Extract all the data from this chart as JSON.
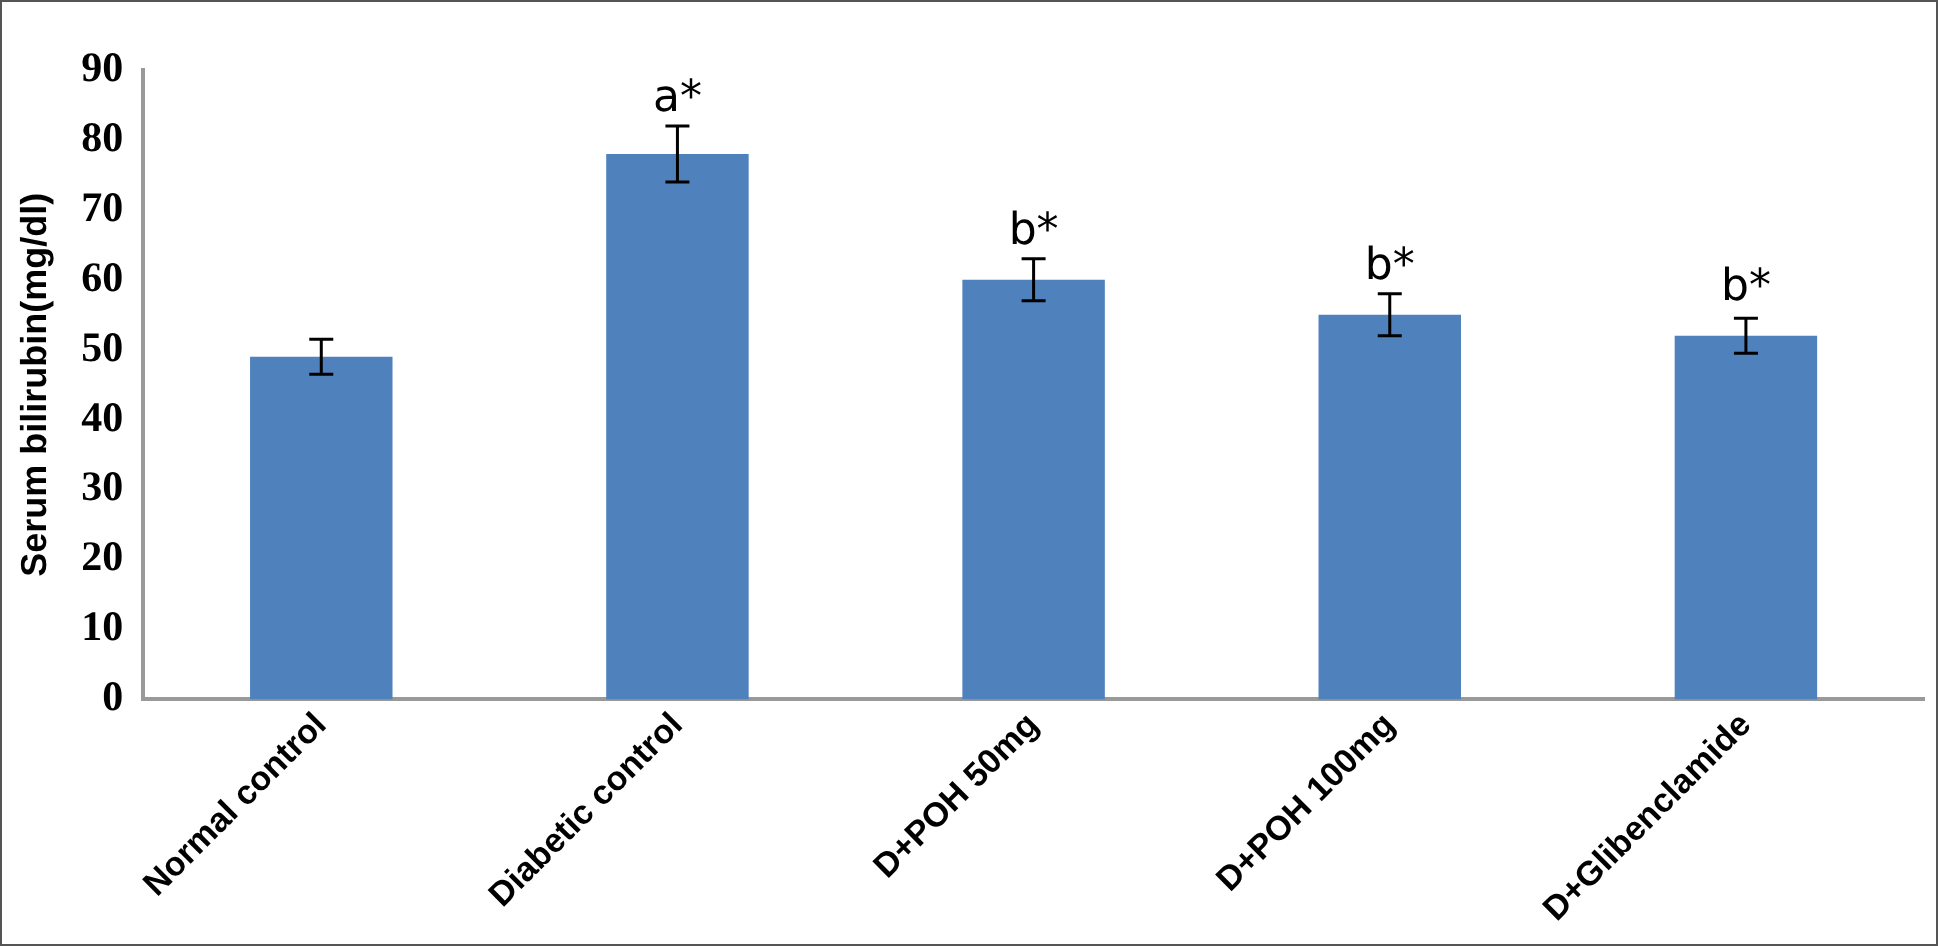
{
  "chart_data": {
    "type": "bar",
    "ylabel": "Serum bilirubin(mg/dl)",
    "categories": [
      "Normal control",
      "Diabetic control",
      "D+POH 50mg",
      "D+POH 100mg",
      "D+Glibenclamide"
    ],
    "values": [
      49,
      78,
      60,
      55,
      52
    ],
    "errors": [
      2.5,
      4,
      3,
      3,
      2.5
    ],
    "color": "#4f81bd",
    "ylim": [
      0,
      90
    ],
    "yticks": [
      0,
      10,
      20,
      30,
      40,
      50,
      60,
      70,
      80,
      90
    ],
    "grid": false,
    "annotations": [
      {
        "text": "a*",
        "x": "Diabetic control",
        "y": 82
      },
      {
        "text": "b*",
        "x": "D+POH 50mg",
        "y": 63
      },
      {
        "text": "b*",
        "x": "D+POH 100mg",
        "y": 58
      },
      {
        "text": "b*",
        "x": "D+Glibenclamide",
        "y": 55
      }
    ]
  }
}
